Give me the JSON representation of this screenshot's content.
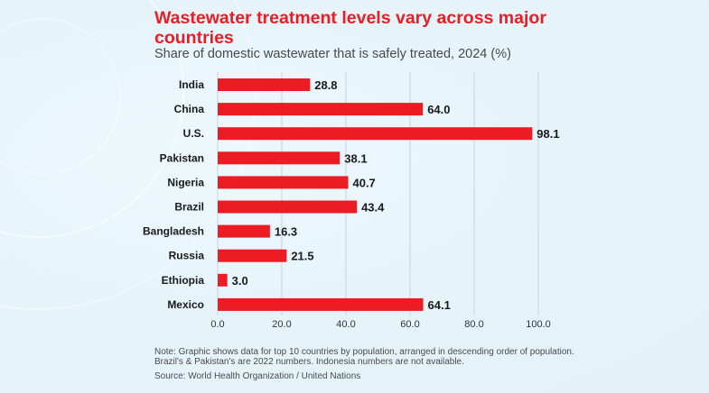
{
  "title": "Wastewater treatment levels vary across major countries",
  "subtitle": "Share of domestic wastewater that is safely treated, 2024 (%)",
  "note": "Note: Graphic shows data for top 10 countries by population, arranged in descending order of population. Brazil's & Pakistan's are 2022 numbers. Indonesia numbers are not available.",
  "source": "Source: World Health Organization / United Nations",
  "colors": {
    "bar": "#ED1C24",
    "title": "#ED1C24",
    "grid": "#c9d3d8"
  },
  "chart_data": {
    "type": "bar",
    "orientation": "horizontal",
    "title": "Wastewater treatment levels vary across major countries",
    "subtitle": "Share of domestic wastewater that is safely treated, 2024 (%)",
    "xlabel": "",
    "ylabel": "",
    "categories": [
      "India",
      "China",
      "U.S.",
      "Pakistan",
      "Nigeria",
      "Brazil",
      "Bangladesh",
      "Russia",
      "Ethiopia",
      "Mexico"
    ],
    "values": [
      28.8,
      64.0,
      98.1,
      38.1,
      40.7,
      43.4,
      16.3,
      21.5,
      3.0,
      64.1
    ],
    "value_labels": [
      "28.8",
      "64.0",
      "98.1",
      "38.1",
      "40.7",
      "43.4",
      "16.3",
      "21.5",
      "3.0",
      "64.1"
    ],
    "xlim": [
      0,
      100
    ],
    "xticks": [
      0,
      20,
      40,
      60,
      80,
      100
    ],
    "xtick_labels": [
      "0.0",
      "20.0",
      "40.0",
      "60.0",
      "80.0",
      "100.0"
    ],
    "grid": "vertical",
    "legend": "none"
  }
}
